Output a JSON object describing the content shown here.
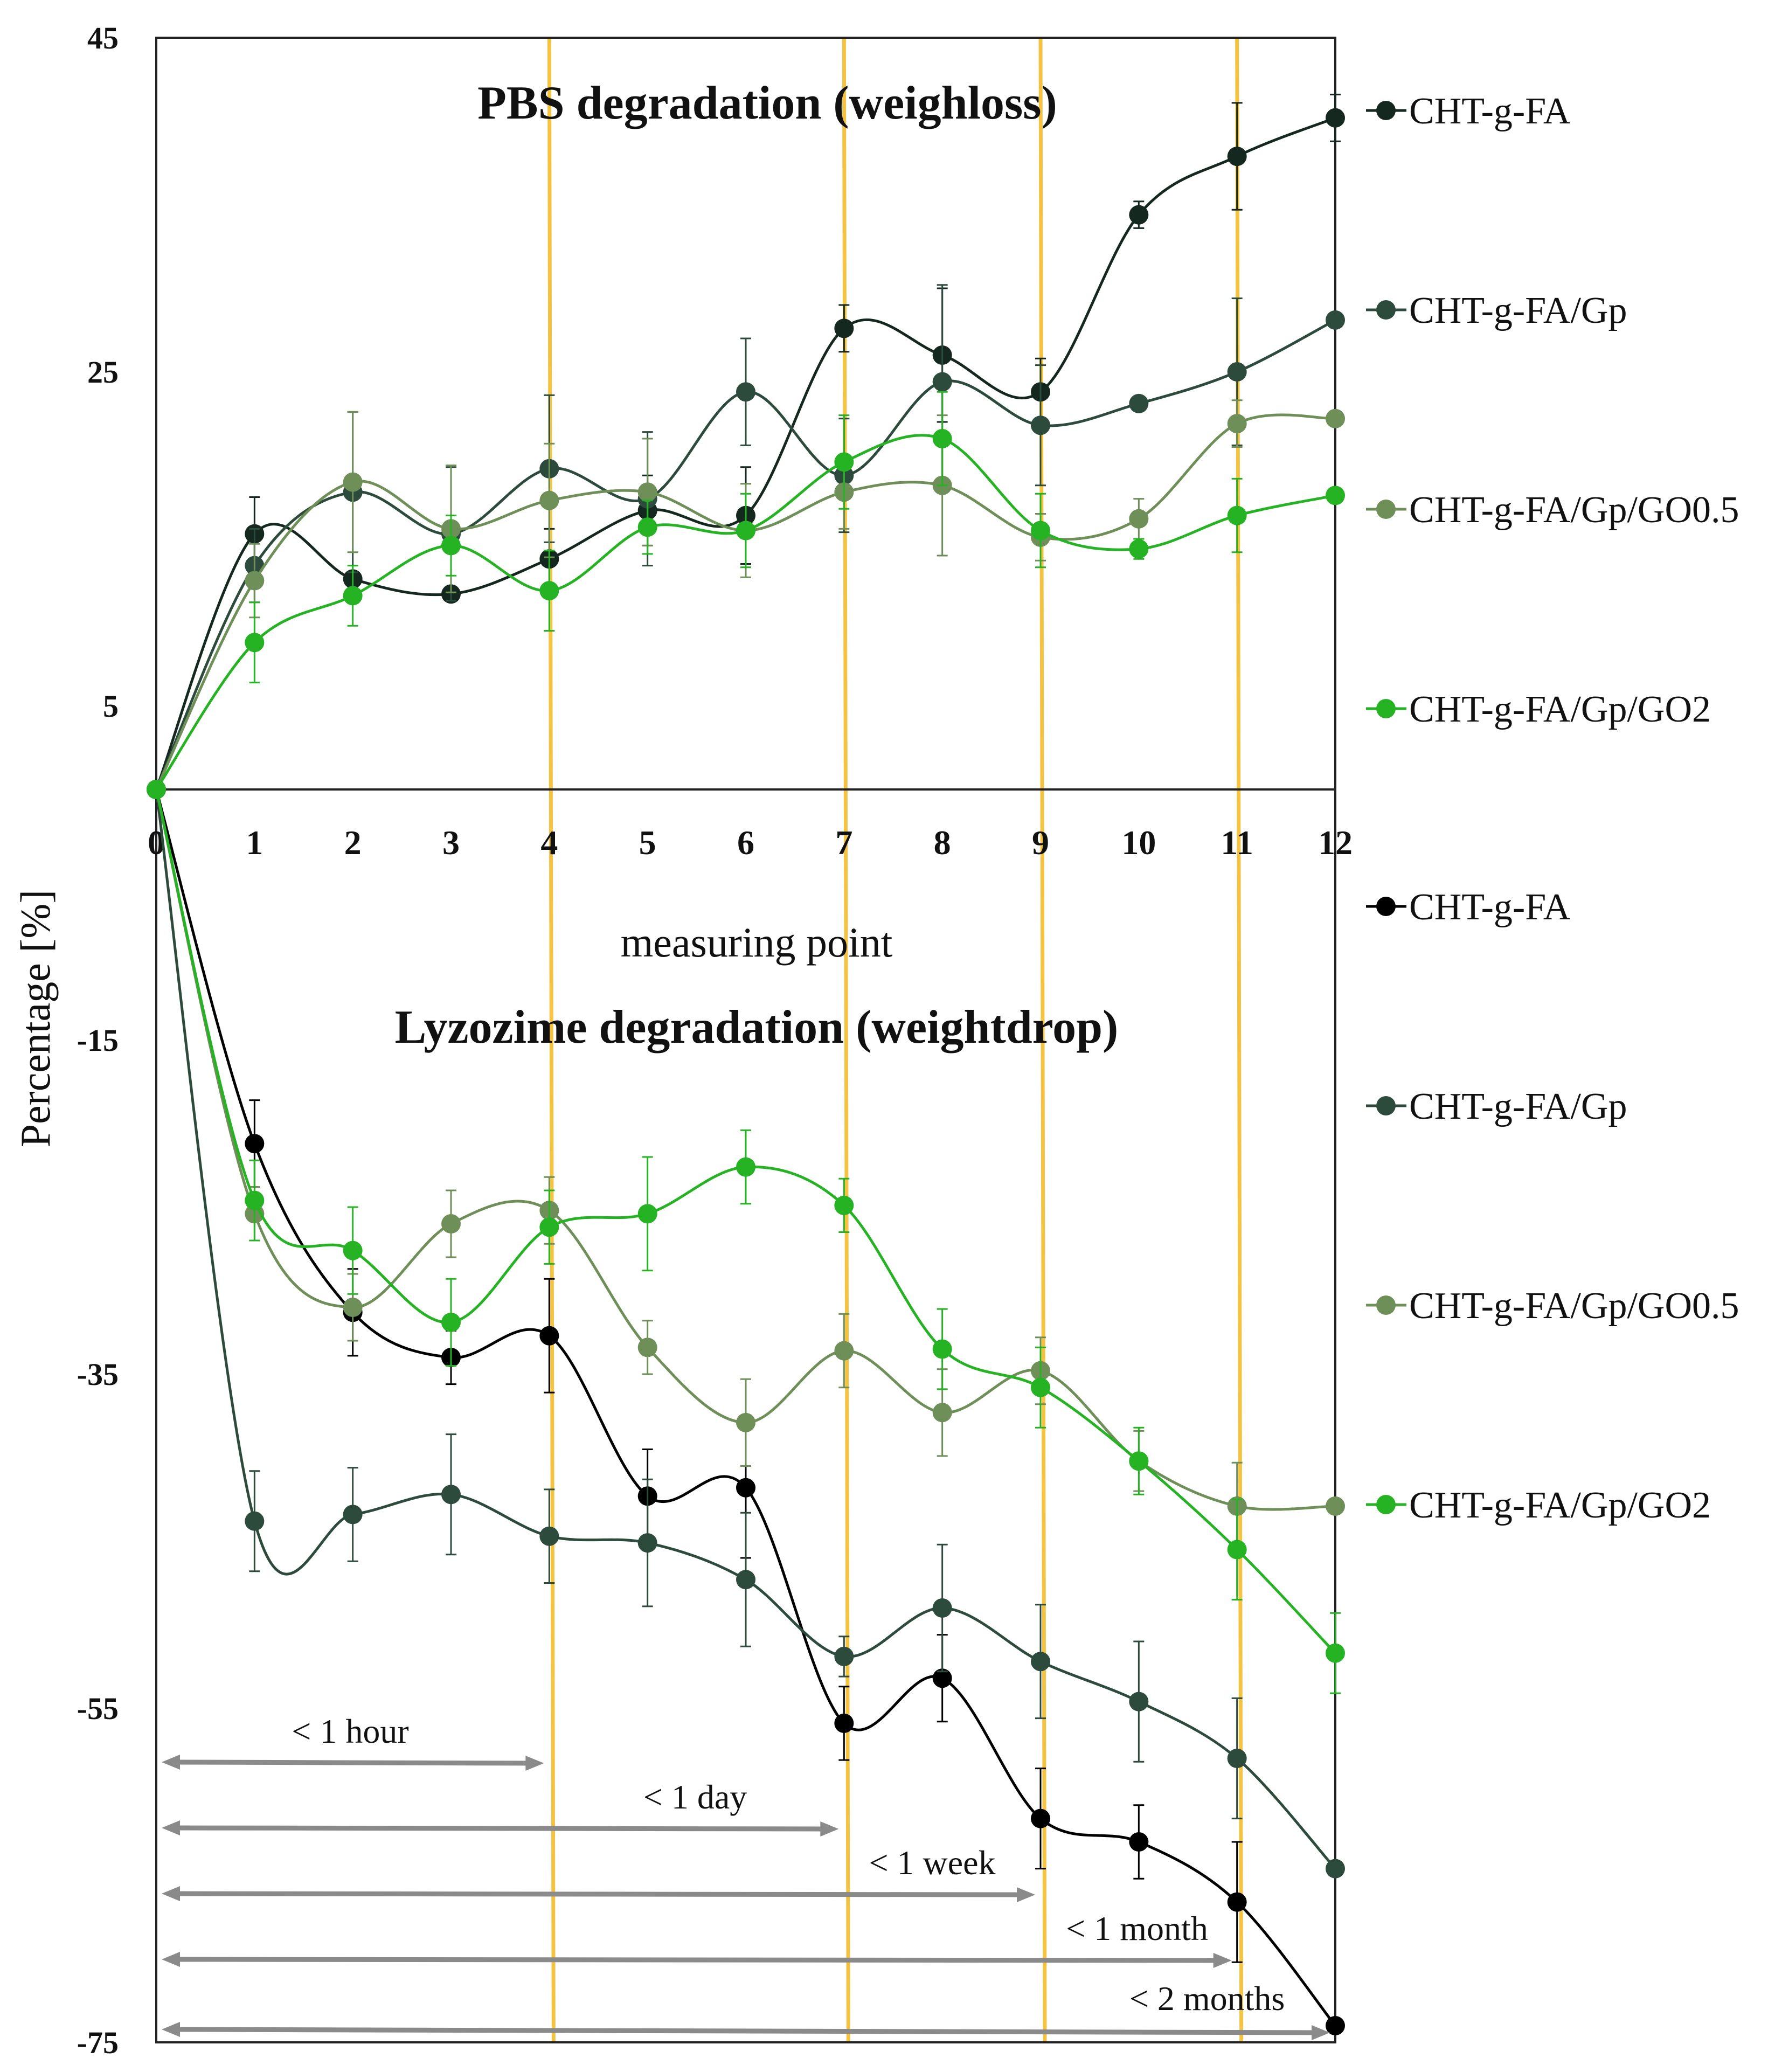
{
  "chart_data": {
    "type": "line",
    "ylabel": "Percentage [%]",
    "xlabel": "measuring point",
    "ylim": [
      -75,
      45
    ],
    "yticks": [
      "45",
      "25",
      "5",
      "-15",
      "-35",
      "-55",
      "-75"
    ],
    "x": [
      0,
      1,
      2,
      3,
      4,
      5,
      6,
      7,
      8,
      9,
      10,
      11,
      12
    ],
    "xtick_labels": [
      "0",
      "1",
      "2",
      "3",
      "4",
      "5",
      "6",
      "7",
      "8",
      "9",
      "10",
      "11",
      "12"
    ],
    "vertical_markers": [
      4,
      7,
      9,
      11
    ],
    "marker_color": "#f5c342",
    "panels": [
      {
        "title": "PBS degradation (weighloss)",
        "series": [
          {
            "name": "CHT-g-FA",
            "color": "#14281f",
            "values": [
              0,
              15.3,
              12.6,
              11.7,
              13.8,
              16.7,
              16.4,
              27.6,
              26.0,
              23.8,
              34.4,
              37.9,
              40.2
            ],
            "errors": [
              0,
              2.2,
              0,
              0.4,
              1.8,
              2.1,
              2.9,
              1.4,
              4,
              2.0,
              0.8,
              3.2,
              1.4
            ]
          },
          {
            "name": "CHT-g-FA/Gp",
            "color": "#2d4b3c",
            "values": [
              0,
              13.4,
              17.8,
              15.3,
              19.2,
              17.4,
              23.8,
              18.8,
              24.4,
              21.8,
              23.1,
              25.0,
              28.1
            ],
            "errors": [
              0,
              2.2,
              4.8,
              4,
              4.4,
              4,
              3.2,
              3.4,
              5.8,
              3.6,
              0,
              4.4,
              0
            ]
          },
          {
            "name": "CHT-g-FA/Gp/GO0.5",
            "color": "#6e8f58",
            "values": [
              0,
              12.5,
              18.4,
              15.6,
              17.3,
              17.8,
              15.5,
              17.8,
              18.2,
              15.1,
              16.2,
              21.9,
              22.2
            ],
            "errors": [
              0,
              2.2,
              4.2,
              3.8,
              3.4,
              3.2,
              2.8,
              2.2,
              4.2,
              1.4,
              1.2,
              1.4,
              0
            ]
          },
          {
            "name": "CHT-g-FA/Gp/GO2",
            "color": "#25b324",
            "values": [
              0,
              8.8,
              11.6,
              14.6,
              11.9,
              15.7,
              15.5,
              19.6,
              21.0,
              15.5,
              14.4,
              16.4,
              17.6
            ],
            "errors": [
              0,
              2.4,
              1.8,
              1.8,
              2.4,
              1.6,
              2.2,
              2.8,
              2.8,
              2.2,
              0.6,
              2.2,
              0
            ]
          }
        ],
        "legend": [
          "CHT-g-FA",
          "CHT-g-FA/Gp",
          "CHT-g-FA/Gp/GO0.5",
          "CHT-g-FA/Gp/GO2"
        ]
      },
      {
        "title": "Lyzozime degradation (weightdrop)",
        "series": [
          {
            "name": "CHT-g-FA",
            "color": "#000000",
            "values": [
              0,
              -21.2,
              -31.3,
              -34.0,
              -32.7,
              -42.3,
              -41.8,
              -55.9,
              -53.2,
              -61.6,
              -63.0,
              -66.6,
              -74.0
            ],
            "errors": [
              0,
              2.6,
              2.6,
              1.6,
              3.4,
              2.8,
              4.2,
              2.2,
              2.6,
              3.0,
              2.2,
              3.6,
              0
            ]
          },
          {
            "name": "CHT-g-FA/Gp",
            "color": "#2d4b3c",
            "values": [
              0,
              -43.8,
              -43.4,
              -42.2,
              -44.7,
              -45.1,
              -47.3,
              -51.9,
              -49.0,
              -52.2,
              -54.6,
              -58.0,
              -64.6
            ],
            "errors": [
              0,
              3.0,
              2.8,
              3.6,
              2.8,
              3.8,
              4.0,
              1.2,
              3.8,
              3.4,
              3.6,
              3.6,
              0
            ]
          },
          {
            "name": "CHT-g-FA/Gp/GO0.5",
            "color": "#6e8f58",
            "values": [
              0,
              -25.4,
              -31.0,
              -26.0,
              -25.2,
              -33.4,
              -37.9,
              -33.6,
              -37.3,
              -34.8,
              -40.2,
              -42.9,
              -42.9
            ],
            "errors": [
              0,
              1.6,
              2.0,
              2.0,
              2.0,
              1.6,
              2.6,
              2.2,
              2.6,
              2.0,
              1.8,
              2.6,
              0
            ]
          },
          {
            "name": "CHT-g-FA/Gp/GO2",
            "color": "#25b324",
            "values": [
              0,
              -24.6,
              -27.6,
              -31.9,
              -26.2,
              -25.4,
              -22.6,
              -24.9,
              -33.5,
              -35.8,
              -40.2,
              -45.5,
              -51.7
            ],
            "errors": [
              0,
              2.4,
              2.6,
              2.6,
              2.2,
              3.4,
              2.2,
              1.6,
              2.4,
              2.4,
              2.0,
              3.0,
              2.4
            ]
          }
        ],
        "legend": [
          "CHT-g-FA",
          "CHT-g-FA/Gp",
          "CHT-g-FA/Gp/GO0.5",
          "CHT-g-FA/Gp/GO2"
        ]
      }
    ],
    "range_annotations": [
      {
        "label": "< 1 hour",
        "to": 4
      },
      {
        "label": "< 1 day",
        "to": 7
      },
      {
        "label": "< 1 week",
        "to": 9
      },
      {
        "label": "< 1 month",
        "to": 11
      },
      {
        "label": "< 2 months",
        "to": 12
      }
    ],
    "arrow_color": "#8a8a8a"
  }
}
